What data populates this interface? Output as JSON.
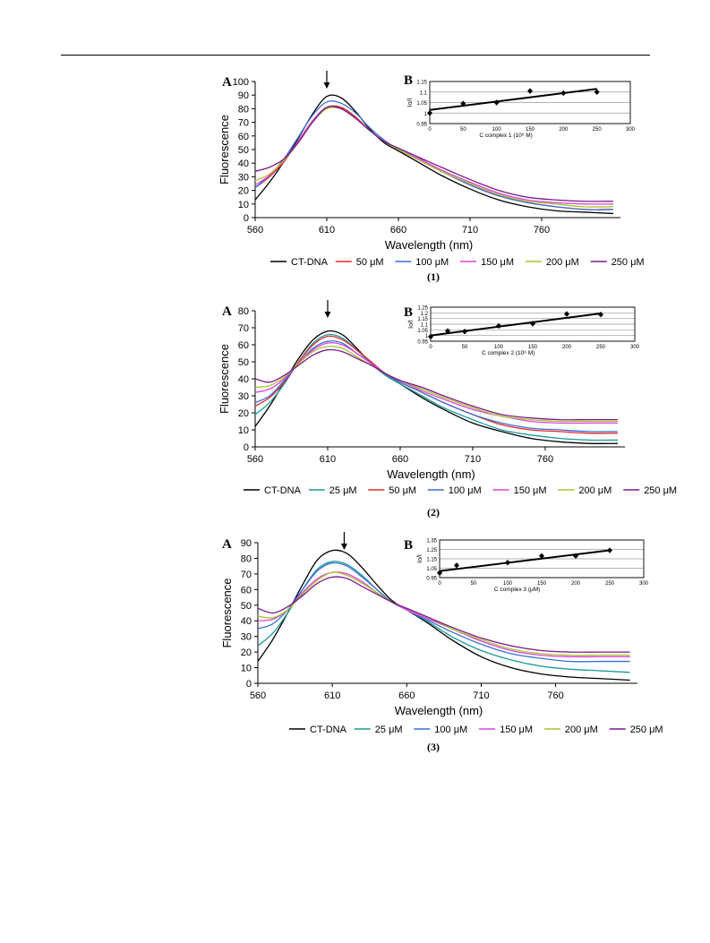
{
  "page": {
    "colors": {
      "ink": "#000000",
      "gridline": "#9a9a9a"
    }
  },
  "figures": [
    {
      "caption": "(1)",
      "panel_a_letter": "A",
      "panel_b_letter": "B",
      "chart_index": 0,
      "inset_index": 1
    },
    {
      "caption": "(2)",
      "panel_a_letter": "A",
      "panel_b_letter": "B",
      "chart_index": 2,
      "inset_index": 3
    },
    {
      "caption": "(3)",
      "panel_a_letter": "A",
      "panel_b_letter": "B",
      "chart_index": 4,
      "inset_index": 5
    }
  ],
  "chart_data": [
    {
      "type": "line",
      "xlabel": "Wavelength (nm)",
      "ylabel": "Fluorescence",
      "xlim": [
        560,
        815
      ],
      "ylim": [
        0,
        100
      ],
      "xticks": [
        560,
        610,
        660,
        710,
        760
      ],
      "yticks": [
        0,
        10,
        20,
        30,
        40,
        50,
        60,
        70,
        80,
        90,
        100
      ],
      "grid": false,
      "legend": "bottom",
      "arrow_x": 610,
      "x": [
        560,
        570,
        580,
        590,
        600,
        610,
        620,
        630,
        640,
        650,
        660,
        675,
        690,
        710,
        730,
        750,
        770,
        790,
        810
      ],
      "series": [
        {
          "name": "CT-DNA",
          "color": "#000000",
          "values": [
            13,
            26,
            41,
            58,
            76,
            89,
            88,
            78,
            65,
            55,
            49,
            40,
            31,
            21,
            13,
            8,
            5,
            4,
            3
          ]
        },
        {
          "name": "50 μM",
          "color": "#e8262a",
          "values": [
            22,
            30,
            41,
            56,
            71,
            81,
            81,
            74,
            64,
            56,
            50,
            42,
            34,
            24,
            16,
            11,
            8,
            6,
            6
          ]
        },
        {
          "name": "100 μM",
          "color": "#3b6fd6",
          "values": [
            22,
            31,
            43,
            59,
            75,
            85,
            84,
            77,
            66,
            57,
            50,
            42,
            34,
            24,
            16,
            11,
            8,
            6,
            6
          ]
        },
        {
          "name": "150 μM",
          "color": "#e040e0",
          "values": [
            24,
            31,
            42,
            56,
            71,
            81,
            80,
            73,
            64,
            56,
            50,
            43,
            35,
            26,
            18,
            13,
            11,
            10,
            10
          ]
        },
        {
          "name": "200 μM",
          "color": "#a8c42a",
          "values": [
            27,
            32,
            42,
            55,
            70,
            80,
            80,
            73,
            64,
            56,
            50,
            42,
            34,
            25,
            17,
            12,
            10,
            8,
            8
          ]
        },
        {
          "name": "250 μM",
          "color": "#7a1a8a",
          "values": [
            34,
            37,
            43,
            55,
            70,
            81,
            80,
            73,
            64,
            56,
            51,
            44,
            37,
            28,
            20,
            15,
            13,
            12,
            12
          ]
        }
      ]
    },
    {
      "type": "scatter",
      "xlabel": "C complex 1 (10⁶ M)",
      "ylabel": "Io/I",
      "xlim": [
        0,
        300
      ],
      "ylim": [
        0.95,
        1.15
      ],
      "xticks": [
        0,
        50,
        100,
        150,
        200,
        250,
        300
      ],
      "yticks": [
        0.95,
        1,
        1.05,
        1.1,
        1.15
      ],
      "ytick_labels": [
        "0.95",
        "1",
        "1.05",
        "1.1",
        "1.15"
      ],
      "grid": true,
      "points": {
        "x": [
          0,
          50,
          100,
          150,
          200,
          250
        ],
        "y": [
          1.0,
          1.045,
          1.05,
          1.105,
          1.095,
          1.1
        ]
      },
      "fit": {
        "x": [
          0,
          250
        ],
        "y": [
          1.015,
          1.115
        ]
      }
    },
    {
      "type": "line",
      "xlabel": "Wavelength (nm)",
      "ylabel": "Fluorescence",
      "xlim": [
        560,
        815
      ],
      "ylim": [
        0,
        80
      ],
      "xticks": [
        560,
        610,
        660,
        710,
        760
      ],
      "yticks": [
        0,
        10,
        20,
        30,
        40,
        50,
        60,
        70,
        80
      ],
      "grid": false,
      "legend": "bottom",
      "arrow_x": 610,
      "x": [
        560,
        570,
        580,
        590,
        600,
        610,
        620,
        630,
        640,
        650,
        660,
        675,
        690,
        710,
        730,
        750,
        770,
        790,
        810
      ],
      "series": [
        {
          "name": "CT-DNA",
          "color": "#000000",
          "values": [
            12,
            24,
            38,
            52,
            63,
            68,
            66,
            58,
            49,
            42,
            37,
            29,
            22,
            14,
            9,
            5,
            3,
            2,
            2
          ]
        },
        {
          "name": "25 μM",
          "color": "#1a9a9a",
          "values": [
            19,
            26,
            37,
            50,
            61,
            66,
            64,
            57,
            49,
            42,
            37,
            30,
            23,
            16,
            10,
            7,
            5,
            4,
            4
          ]
        },
        {
          "name": "50 μM",
          "color": "#e8262a",
          "values": [
            24,
            29,
            38,
            50,
            60,
            65,
            63,
            57,
            50,
            43,
            38,
            32,
            26,
            19,
            13,
            10,
            9,
            8,
            8
          ]
        },
        {
          "name": "100 μM",
          "color": "#3b6fd6",
          "values": [
            26,
            30,
            39,
            49,
            58,
            62,
            61,
            55,
            49,
            43,
            38,
            32,
            26,
            19,
            14,
            11,
            10,
            9,
            9
          ]
        },
        {
          "name": "150 μM",
          "color": "#e040e0",
          "values": [
            32,
            34,
            40,
            49,
            57,
            61,
            60,
            55,
            49,
            43,
            39,
            33,
            28,
            22,
            18,
            15,
            14,
            14,
            14
          ]
        },
        {
          "name": "200 μM",
          "color": "#a8c42a",
          "values": [
            35,
            36,
            41,
            49,
            56,
            59,
            58,
            53,
            48,
            43,
            39,
            34,
            29,
            23,
            18,
            16,
            15,
            15,
            15
          ]
        },
        {
          "name": "250 μM",
          "color": "#7a1a8a",
          "values": [
            40,
            38,
            42,
            48,
            54,
            57,
            56,
            52,
            48,
            43,
            39,
            35,
            30,
            24,
            19,
            17,
            16,
            16,
            16
          ]
        }
      ]
    },
    {
      "type": "scatter",
      "xlabel": "C complex 2 (10⁶ M)",
      "ylabel": "Io/I",
      "xlim": [
        0,
        300
      ],
      "ylim": [
        0.95,
        1.25
      ],
      "xticks": [
        0,
        50,
        100,
        150,
        200,
        250,
        300
      ],
      "yticks": [
        0.95,
        1,
        1.05,
        1.1,
        1.15,
        1.2,
        1.25
      ],
      "ytick_labels": [
        "0.95",
        "1",
        "1.05",
        "1.1",
        "1.15",
        "1.2",
        "1.25"
      ],
      "grid": true,
      "points": {
        "x": [
          0,
          25,
          50,
          100,
          150,
          200,
          250
        ],
        "y": [
          0.99,
          1.04,
          1.035,
          1.085,
          1.105,
          1.19,
          1.185
        ]
      },
      "fit": {
        "x": [
          0,
          250
        ],
        "y": [
          1.0,
          1.195
        ]
      }
    },
    {
      "type": "line",
      "xlabel": "Wavelength (nm)",
      "ylabel": "Fluorescence",
      "xlim": [
        560,
        815
      ],
      "ylim": [
        0,
        90
      ],
      "xticks": [
        560,
        610,
        660,
        710,
        760
      ],
      "yticks": [
        0,
        10,
        20,
        30,
        40,
        50,
        60,
        70,
        80,
        90
      ],
      "grid": false,
      "legend": "bottom",
      "arrow_x": 618,
      "x": [
        560,
        570,
        580,
        590,
        600,
        610,
        620,
        630,
        640,
        650,
        660,
        675,
        690,
        710,
        730,
        750,
        770,
        790,
        810
      ],
      "series": [
        {
          "name": "CT-DNA",
          "color": "#000000",
          "values": [
            14,
            28,
            45,
            63,
            79,
            85,
            83,
            74,
            63,
            53,
            47,
            38,
            28,
            17,
            10,
            6,
            4,
            3,
            2
          ]
        },
        {
          "name": "25 μM",
          "color": "#1a9a9a",
          "values": [
            24,
            32,
            45,
            60,
            73,
            78,
            76,
            69,
            60,
            52,
            47,
            39,
            30,
            21,
            15,
            11,
            9,
            8,
            7
          ]
        },
        {
          "name": "100 μM",
          "color": "#3b6fd6",
          "values": [
            35,
            38,
            47,
            60,
            72,
            77,
            75,
            68,
            60,
            52,
            47,
            40,
            33,
            25,
            19,
            16,
            14,
            14,
            14
          ]
        },
        {
          "name": "150 μM",
          "color": "#e040e0",
          "values": [
            40,
            41,
            47,
            58,
            67,
            71,
            70,
            65,
            58,
            52,
            47,
            41,
            35,
            27,
            21,
            18,
            17,
            17,
            17
          ]
        },
        {
          "name": "200 μM",
          "color": "#a8c42a",
          "values": [
            43,
            42,
            47,
            57,
            66,
            71,
            69,
            64,
            58,
            52,
            48,
            42,
            35,
            28,
            22,
            19,
            18,
            18,
            18
          ]
        },
        {
          "name": "250 μM",
          "color": "#7a1a8a",
          "values": [
            48,
            45,
            49,
            56,
            64,
            68,
            67,
            62,
            57,
            52,
            48,
            42,
            36,
            29,
            24,
            21,
            20,
            20,
            20
          ]
        }
      ]
    },
    {
      "type": "scatter",
      "xlabel": "C complex 3 (μM)",
      "ylabel": "Io/I",
      "xlim": [
        0,
        300
      ],
      "ylim": [
        0.95,
        1.35
      ],
      "xticks": [
        0,
        50,
        100,
        150,
        200,
        250,
        300
      ],
      "yticks": [
        0.95,
        1.05,
        1.15,
        1.25,
        1.35
      ],
      "ytick_labels": [
        "0.95",
        "1.05",
        "1.15",
        "1.25",
        "1.35"
      ],
      "grid": true,
      "points": {
        "x": [
          0,
          25,
          100,
          150,
          200,
          250
        ],
        "y": [
          1.0,
          1.08,
          1.11,
          1.18,
          1.18,
          1.24
        ]
      },
      "fit": {
        "x": [
          0,
          250
        ],
        "y": [
          1.02,
          1.24
        ]
      }
    }
  ]
}
